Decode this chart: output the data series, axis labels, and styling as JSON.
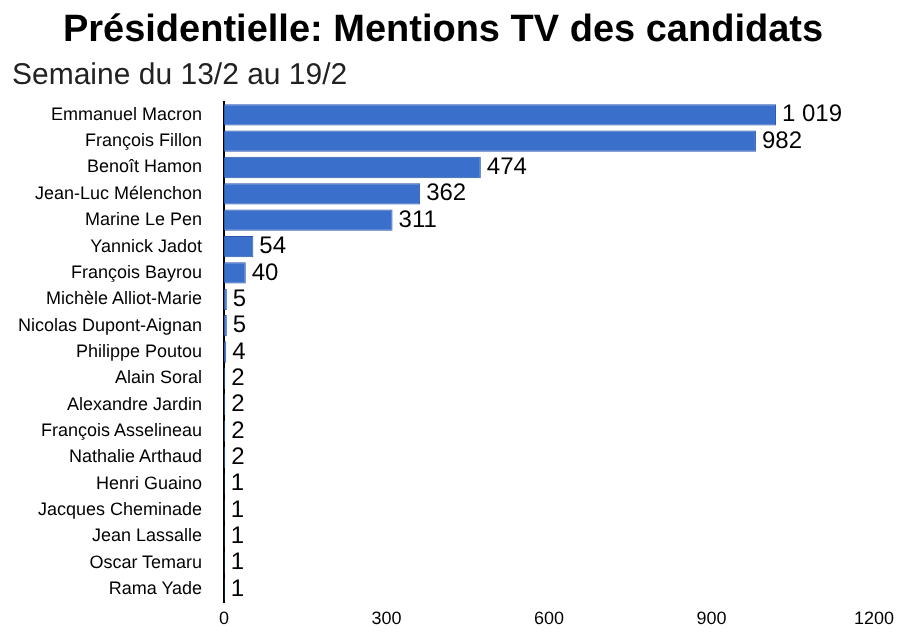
{
  "chart_data": {
    "type": "bar",
    "orientation": "horizontal",
    "title": "Présidentielle: Mentions TV des candidats",
    "subtitle": "Semaine du 13/2 au 19/2",
    "categories": [
      "Emmanuel Macron",
      "François Fillon",
      "Benoît Hamon",
      "Jean-Luc Mélenchon",
      "Marine Le Pen",
      "Yannick Jadot",
      "François Bayrou",
      "Michèle Alliot-Marie",
      "Nicolas Dupont-Aignan",
      "Philippe Poutou",
      "Alain Soral",
      "Alexandre Jardin",
      "François Asselineau",
      "Nathalie Arthaud",
      "Henri Guaino",
      "Jacques Cheminade",
      "Jean Lassalle",
      "Oscar Temaru",
      "Rama Yade"
    ],
    "values": [
      1019,
      982,
      474,
      362,
      311,
      54,
      40,
      5,
      5,
      4,
      2,
      2,
      2,
      2,
      1,
      1,
      1,
      1,
      1
    ],
    "value_labels": [
      "1 019",
      "982",
      "474",
      "362",
      "311",
      "54",
      "40",
      "5",
      "5",
      "4",
      "2",
      "2",
      "2",
      "2",
      "1",
      "1",
      "1",
      "1",
      "1"
    ],
    "color": "#3b6fcc",
    "xlim": [
      0,
      1200
    ],
    "xticks": [
      0,
      300,
      600,
      900,
      1200
    ],
    "grid": false,
    "legend": false
  }
}
